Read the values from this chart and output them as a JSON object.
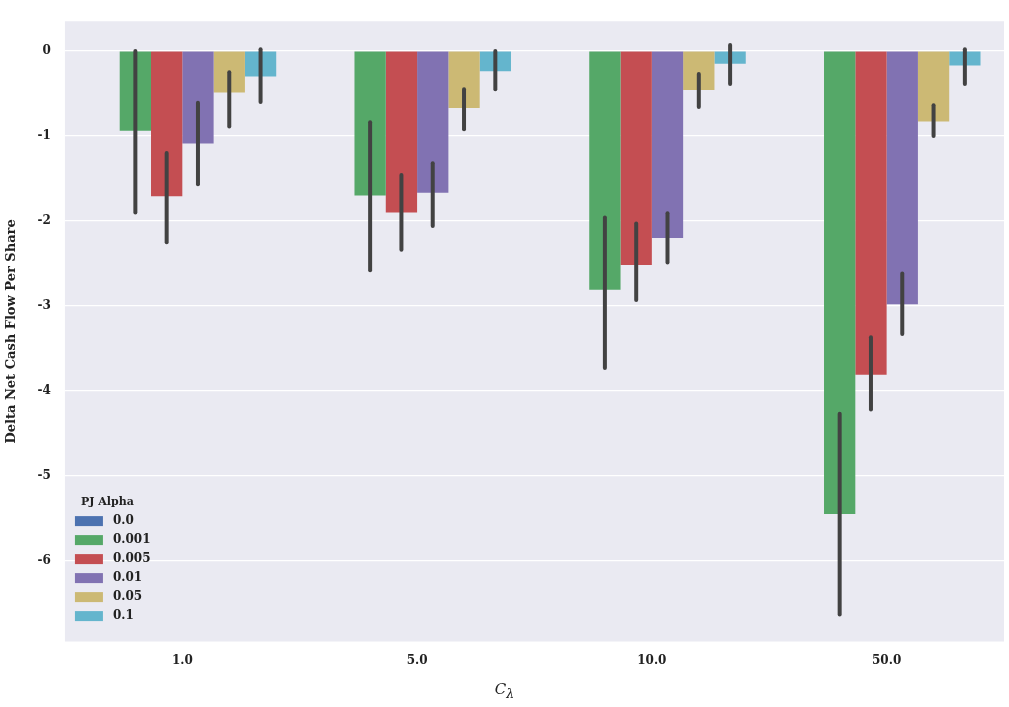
{
  "chart_data": {
    "type": "bar",
    "xlabel": "C$_{λ}$",
    "ylabel": "Delta Net Cash Flow Per Share",
    "legend_title": "PJ Alpha",
    "categories": [
      "1.0",
      "5.0",
      "10.0",
      "50.0"
    ],
    "series": [
      {
        "name": "0.0",
        "color": "#4c72b0",
        "values": [
          0,
          0,
          0,
          0
        ]
      },
      {
        "name": "0.001",
        "color": "#55a868",
        "values": [
          -0.94,
          -1.7,
          -2.81,
          -5.45
        ],
        "errors": [
          [
            -1.9,
            0.0
          ],
          [
            -2.58,
            -0.84
          ],
          [
            -3.73,
            -1.96
          ],
          [
            -6.63,
            -4.27
          ]
        ]
      },
      {
        "name": "0.005",
        "color": "#c44e52",
        "values": [
          -1.71,
          -1.9,
          -2.52,
          -3.81
        ],
        "errors": [
          [
            -2.25,
            -1.2
          ],
          [
            -2.34,
            -1.46
          ],
          [
            -2.93,
            -2.03
          ],
          [
            -4.22,
            -3.37
          ]
        ]
      },
      {
        "name": "0.01",
        "color": "#8172b2",
        "values": [
          -1.09,
          -1.67,
          -2.2,
          -2.98
        ],
        "errors": [
          [
            -1.57,
            -0.61
          ],
          [
            -2.06,
            -1.32
          ],
          [
            -2.49,
            -1.91
          ],
          [
            -3.33,
            -2.62
          ]
        ]
      },
      {
        "name": "0.05",
        "color": "#ccb974",
        "values": [
          -0.49,
          -0.67,
          -0.46,
          -0.83
        ],
        "errors": [
          [
            -0.89,
            -0.25
          ],
          [
            -0.92,
            -0.45
          ],
          [
            -0.66,
            -0.27
          ],
          [
            -1.0,
            -0.64
          ]
        ]
      },
      {
        "name": "0.1",
        "color": "#64b5cd",
        "values": [
          -0.3,
          -0.24,
          -0.15,
          -0.17
        ],
        "errors": [
          [
            -0.6,
            0.02
          ],
          [
            -0.45,
            0.0
          ],
          [
            -0.39,
            0.07
          ],
          [
            -0.39,
            0.02
          ]
        ]
      }
    ],
    "ylim": [
      -6.95,
      0.35
    ],
    "yticks": [
      -6,
      -5,
      -4,
      -3,
      -2,
      -1,
      0
    ],
    "grid": "y",
    "legend": "bottom left"
  }
}
